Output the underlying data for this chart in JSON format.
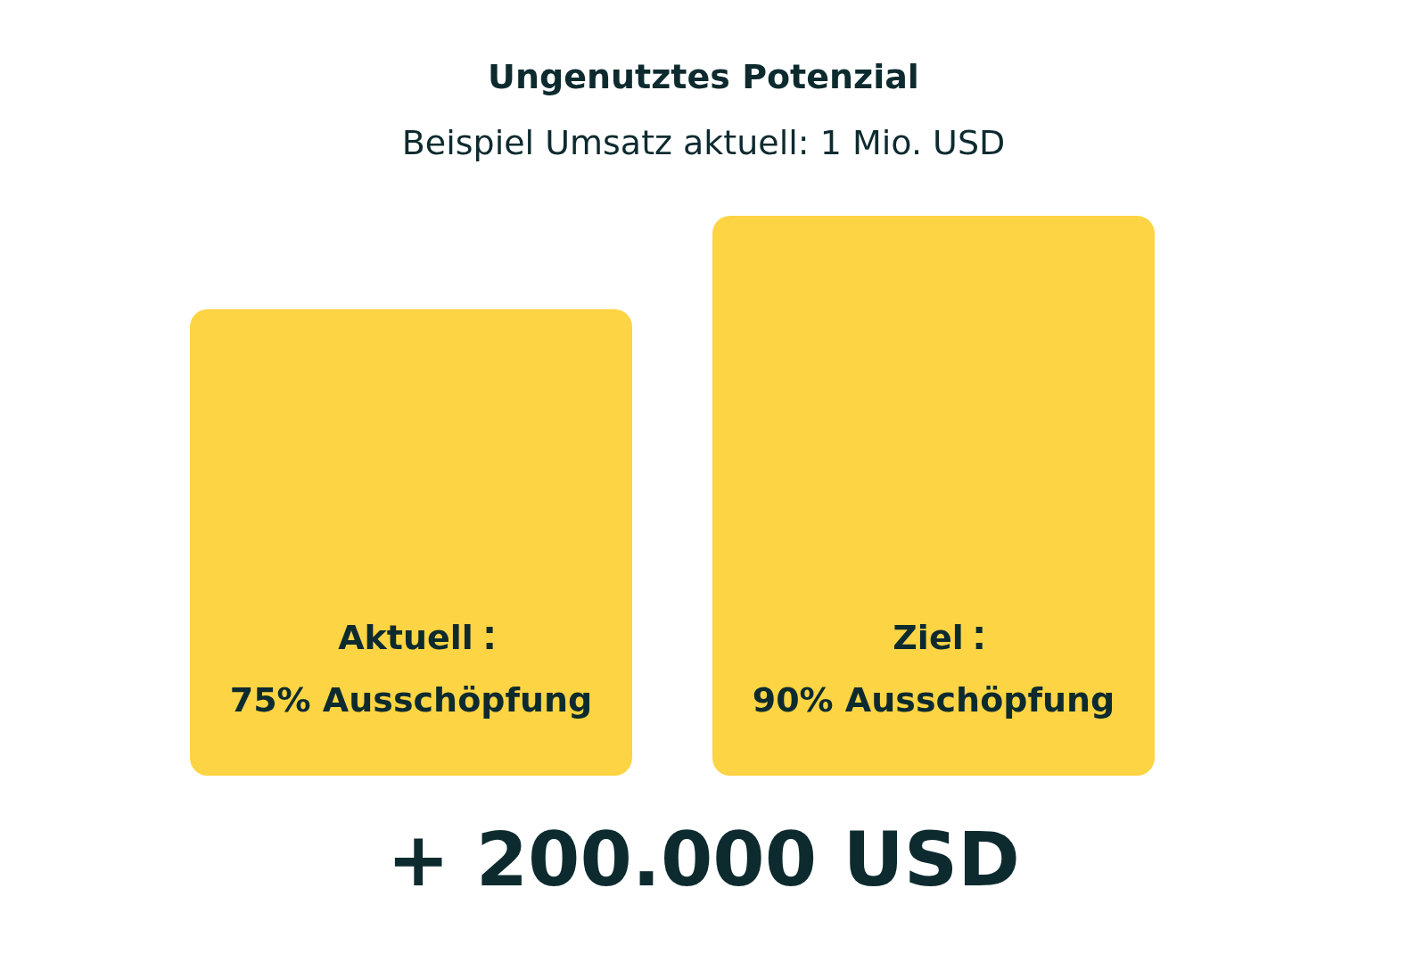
{
  "chart_data": {
    "type": "bar",
    "title": "Ungenutztes Potenzial",
    "subtitle": "Beispiel Umsatz aktuell: 1 Mio. USD",
    "categories": [
      "Aktuell",
      "Ziel"
    ],
    "values": [
      75,
      90
    ],
    "value_labels": [
      "75% Ausschöpfung",
      "90% Ausschöpfung"
    ],
    "color": "#fdd443",
    "annotations": [
      "+ 200.000 USD"
    ]
  }
}
